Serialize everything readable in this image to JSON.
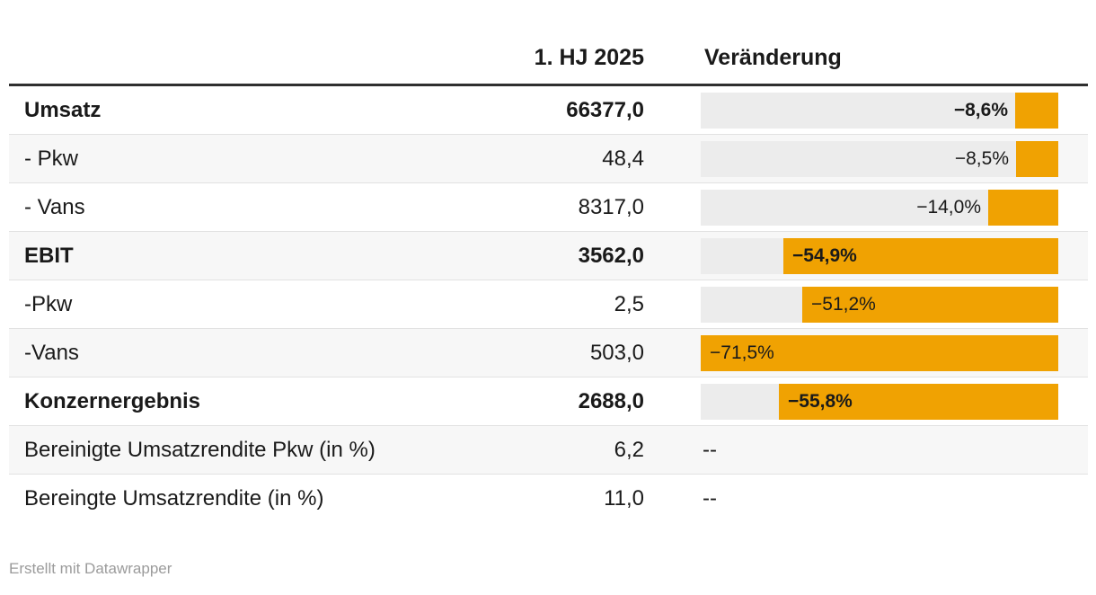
{
  "header": {
    "value_column": "1. HJ 2025",
    "change_column": "Veränderung"
  },
  "table": {
    "rows": [
      {
        "label": "Umsatz",
        "bold": true,
        "value": "66377,0",
        "change": -8.6,
        "change_label": "−8,6%"
      },
      {
        "label": "- Pkw",
        "bold": false,
        "value": "48,4",
        "change": -8.5,
        "change_label": "−8,5%"
      },
      {
        "label": "- Vans",
        "bold": false,
        "value": "8317,0",
        "change": -14.0,
        "change_label": "−14,0%"
      },
      {
        "label": "EBIT",
        "bold": true,
        "value": "3562,0",
        "change": -54.9,
        "change_label": "−54,9%"
      },
      {
        "label": "-Pkw",
        "bold": false,
        "value": "2,5",
        "change": -51.2,
        "change_label": "−51,2%"
      },
      {
        "label": "-Vans",
        "bold": false,
        "value": "503,0",
        "change": -71.5,
        "change_label": "−71,5%"
      },
      {
        "label": "Konzernergebnis",
        "bold": true,
        "value": "2688,0",
        "change": -55.8,
        "change_label": "−55,8%"
      },
      {
        "label": "Bereinigte Umsatzrendite Pkw (in %)",
        "bold": false,
        "value": "6,2",
        "change": null,
        "change_label": "--"
      },
      {
        "label": "Bereingte Umsatzrendite (in %)",
        "bold": false,
        "value": "11,0",
        "change": null,
        "change_label": "--"
      }
    ]
  },
  "chart_data": {
    "type": "table",
    "title": "",
    "columns": [
      "",
      "1. HJ 2025",
      "Veränderung"
    ],
    "rows": [
      [
        "Umsatz",
        66377.0,
        -8.6
      ],
      [
        "- Pkw",
        48.4,
        -8.5
      ],
      [
        "- Vans",
        8317.0,
        -14.0
      ],
      [
        "EBIT",
        3562.0,
        -54.9
      ],
      [
        "-Pkw",
        2.5,
        -51.2
      ],
      [
        "-Vans",
        503.0,
        -71.5
      ],
      [
        "Konzernergebnis",
        2688.0,
        -55.8
      ],
      [
        "Bereinigte Umsatzrendite Pkw (in %)",
        6.2,
        null
      ],
      [
        "Bereingte Umsatzrendite (in %)",
        11.0,
        null
      ]
    ],
    "bar_axis": {
      "min": -71.5,
      "max": 0
    },
    "bar_direction": "right-to-left, anchored at zero on the right edge",
    "legend": "none",
    "grid": "off"
  },
  "style": {
    "bar_color": "#F0A202",
    "track_color": "#ECECEC",
    "alt_row_color": "#F7F7F7",
    "separator_color": "#E2E2E2",
    "rule_color": "#2F2F2F",
    "text_color": "#1A1A1A",
    "footer_color": "#9B9B9B"
  },
  "footer": {
    "text": "Erstellt mit Datawrapper"
  }
}
